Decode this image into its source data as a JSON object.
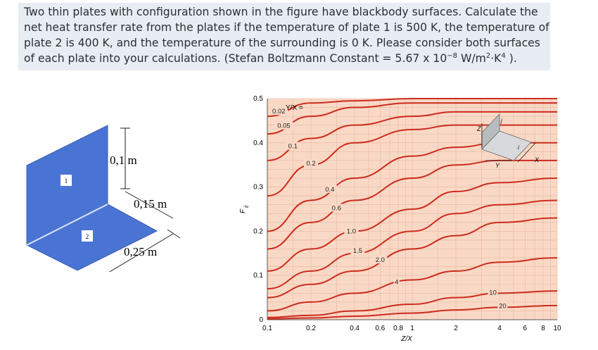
{
  "problem": {
    "line1": "Two thin plates with configuration shown in the figure have blackbody surfaces. Calculate the",
    "line2": "net heat transfer rate from the plates if the temperature of plate 1 is 500 K, the temperature of",
    "line3": "plate 2 is 400 K, and the temperature of the surrounding is 0 K. Please consider both surfaces",
    "line4_a": "of each plate into your calculations. (Stefan Boltzmann Constant = 5.67 x 10",
    "line4_exp": "−8",
    "line4_b": " W/m",
    "line4_exp2": "2",
    "line4_c": "·K",
    "line4_exp3": "4",
    "line4_d": " )."
  },
  "plates_figure": {
    "plate1_label": "1",
    "plate2_label": "2",
    "dim_height": "0,1 m",
    "dim_depth": "0,15 m",
    "dim_width": "0,25 m",
    "plate_color": "#4a74d4"
  },
  "chart_data": {
    "type": "line",
    "ylabel": "F",
    "ylabel_sub": "ij",
    "xlabel": "Z/X",
    "x_scale": "log",
    "xlim": [
      0.1,
      10
    ],
    "ylim": [
      0,
      0.5
    ],
    "y_ticks": [
      "0",
      "0.1",
      "0.2",
      "0.3",
      "0.4",
      "0.5"
    ],
    "x_ticks": [
      "0.1",
      "0.2",
      "0.4",
      "0.6",
      "0.8",
      "1",
      "2",
      "4",
      "6",
      "8",
      "10"
    ],
    "parameter_label": "Y/X =",
    "inset_axes": [
      "Z",
      "Y",
      "X",
      "j",
      "i"
    ],
    "background": "#f9d9c6",
    "curve_color": "#cc2b1d",
    "series": [
      {
        "name": "0.02",
        "x": [
          0.1,
          0.2,
          0.4,
          1,
          2,
          3,
          10
        ],
        "y": [
          0.46,
          0.49,
          0.495,
          0.5,
          0.5,
          0.5,
          0.5
        ]
      },
      {
        "name": "0.05",
        "x": [
          0.1,
          0.2,
          0.4,
          1,
          2,
          3,
          10
        ],
        "y": [
          0.42,
          0.46,
          0.48,
          0.49,
          0.49,
          0.49,
          0.49
        ]
      },
      {
        "name": "0.1",
        "x": [
          0.1,
          0.2,
          0.4,
          1,
          2,
          3,
          10
        ],
        "y": [
          0.36,
          0.41,
          0.44,
          0.46,
          0.47,
          0.47,
          0.47
        ]
      },
      {
        "name": "0.2",
        "x": [
          0.1,
          0.2,
          0.4,
          1,
          2,
          3,
          10
        ],
        "y": [
          0.28,
          0.35,
          0.4,
          0.43,
          0.44,
          0.44,
          0.44
        ]
      },
      {
        "name": "0.4",
        "x": [
          0.1,
          0.2,
          0.4,
          1,
          2,
          4,
          10
        ],
        "y": [
          0.2,
          0.27,
          0.32,
          0.37,
          0.39,
          0.4,
          0.4
        ]
      },
      {
        "name": "0.6",
        "x": [
          0.1,
          0.2,
          0.4,
          1,
          2,
          4,
          10
        ],
        "y": [
          0.16,
          0.22,
          0.27,
          0.32,
          0.35,
          0.36,
          0.36
        ]
      },
      {
        "name": "1.0",
        "x": [
          0.1,
          0.2,
          0.4,
          1,
          2,
          4,
          10
        ],
        "y": [
          0.11,
          0.16,
          0.2,
          0.25,
          0.29,
          0.31,
          0.32
        ]
      },
      {
        "name": "1.5",
        "x": [
          0.1,
          0.2,
          0.4,
          1,
          2,
          4,
          10
        ],
        "y": [
          0.07,
          0.11,
          0.15,
          0.2,
          0.24,
          0.26,
          0.27
        ]
      },
      {
        "name": "2.0",
        "x": [
          0.1,
          0.2,
          0.4,
          1,
          2,
          4,
          10
        ],
        "y": [
          0.05,
          0.08,
          0.11,
          0.16,
          0.19,
          0.22,
          0.23
        ]
      },
      {
        "name": "4",
        "x": [
          0.1,
          0.2,
          0.4,
          1,
          2,
          4,
          10
        ],
        "y": [
          0.02,
          0.04,
          0.06,
          0.09,
          0.11,
          0.13,
          0.14
        ]
      },
      {
        "name": "10",
        "x": [
          0.1,
          0.2,
          0.4,
          1,
          2,
          4,
          10
        ],
        "y": [
          0.005,
          0.01,
          0.02,
          0.035,
          0.05,
          0.06,
          0.065
        ]
      },
      {
        "name": "20",
        "x": [
          0.1,
          0.2,
          0.4,
          1,
          2,
          4,
          10
        ],
        "y": [
          0.002,
          0.004,
          0.008,
          0.015,
          0.022,
          0.028,
          0.032
        ]
      }
    ]
  }
}
